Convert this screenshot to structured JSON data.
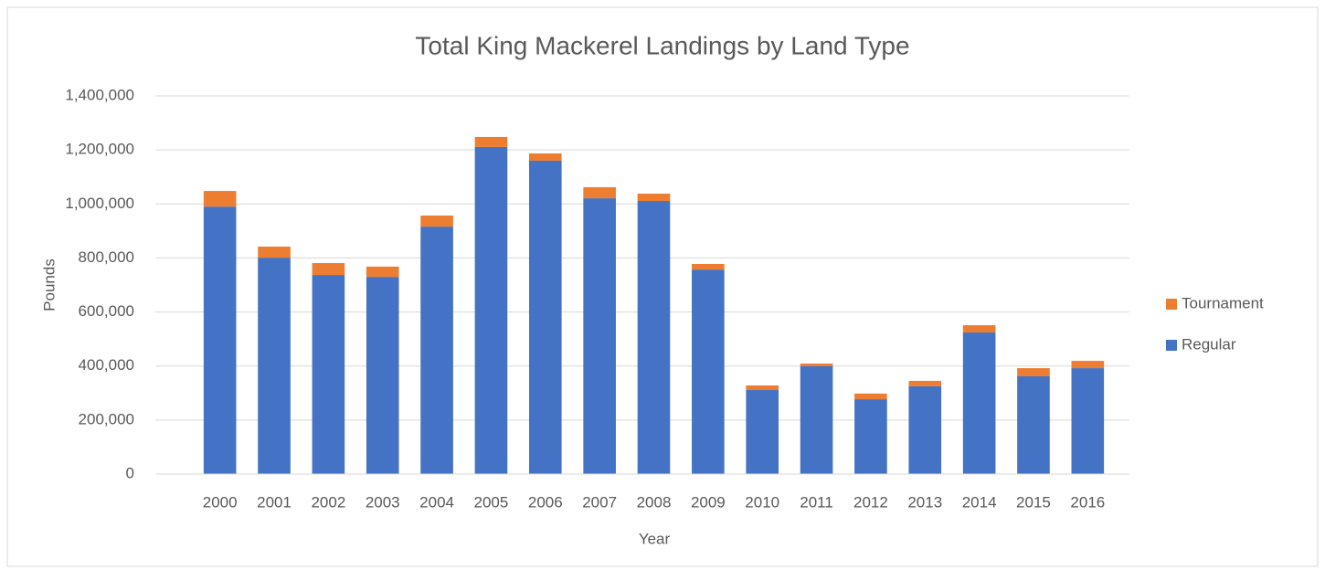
{
  "chart_data": {
    "type": "stacked_bar",
    "title": "Total King Mackerel Landings by Land Type",
    "x_label": "Year",
    "y_label": "Pounds",
    "categories": [
      "2000",
      "2001",
      "2002",
      "2003",
      "2004",
      "2005",
      "2006",
      "2007",
      "2008",
      "2009",
      "2010",
      "2011",
      "2012",
      "2013",
      "2014",
      "2015",
      "2016"
    ],
    "series": [
      {
        "name": "Regular",
        "color": "#4472c4",
        "values": [
          990000,
          801000,
          737000,
          730000,
          916000,
          1211000,
          1160000,
          1021000,
          1011000,
          757000,
          311000,
          399000,
          277000,
          325000,
          524000,
          362000,
          392000
        ]
      },
      {
        "name": "Tournament",
        "color": "#ed7d31",
        "values": [
          58000,
          41000,
          44000,
          38000,
          41000,
          37000,
          27000,
          41000,
          27000,
          21000,
          17000,
          10000,
          21000,
          20000,
          27000,
          30000,
          27000
        ]
      }
    ],
    "ylim": [
      0,
      1400000
    ],
    "yticks": [
      0,
      {
        "value": 200000,
        "label": "200,000"
      },
      {
        "value": 400000,
        "label": "400,000"
      },
      {
        "value": 600000,
        "label": "600,000"
      },
      {
        "value": 800000,
        "label": "800,000"
      },
      {
        "value": 1000000,
        "label": "1,000,000"
      },
      {
        "value": 1200000,
        "label": "1,200,000"
      },
      {
        "value": 1400000,
        "label": "1,400,000"
      }
    ],
    "grid": true,
    "legend": "right"
  }
}
